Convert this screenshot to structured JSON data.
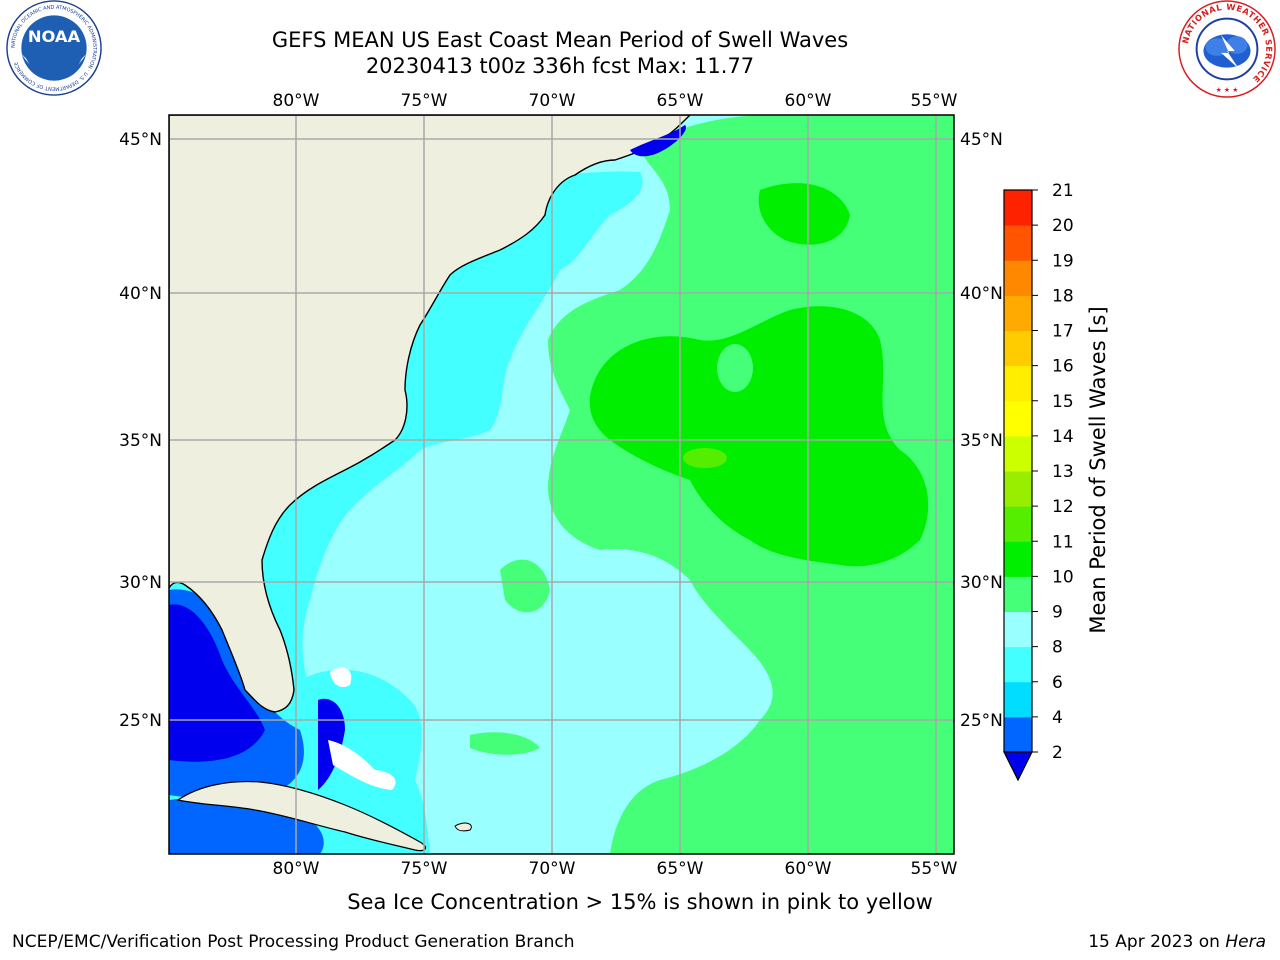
{
  "title_line1": "GEFS MEAN US East Coast Mean Period of Swell Waves",
  "title_line2": "20230413 t00z 336h fcst   Max: 11.77",
  "caption": "Sea Ice Concentration > 15% is shown in pink to yellow",
  "footer_left": "NCEP/EMC/Verification Post Processing Product Generation Branch",
  "footer_date": "15 Apr 2023 on ",
  "footer_machine": "Hera",
  "logos": {
    "noaa": {
      "icon": "noaa-logo",
      "text": "NOAA",
      "ring_text": "NATIONAL OCEANIC AND ATMOSPHERIC ADMINISTRATION · U.S. DEPARTMENT OF COMMERCE"
    },
    "nws": {
      "icon": "nws-logo",
      "ring_text": "NATIONAL WEATHER SERVICE"
    }
  },
  "map": {
    "lon_range": [
      -85,
      -54.3
    ],
    "lat_range": [
      20.3,
      46
    ],
    "lon_ticks": [
      "80°W",
      "75°W",
      "70°W",
      "65°W",
      "60°W",
      "55°W"
    ],
    "lon_tick_values": [
      -80,
      -75,
      -70,
      -65,
      -60,
      -55
    ],
    "lat_ticks": [
      "45°N",
      "40°N",
      "35°N",
      "30°N",
      "25°N"
    ],
    "lat_tick_values": [
      45,
      40,
      35,
      30,
      25
    ],
    "grid": true,
    "land_color": "#efefdf",
    "gridline_color": "#a8a8a8"
  },
  "colorbar": {
    "label": "Mean Period of Swell Waves [s]",
    "ticks": [
      "2",
      "4",
      "6",
      "8",
      "9",
      "10",
      "11",
      "12",
      "13",
      "14",
      "15",
      "16",
      "17",
      "18",
      "19",
      "20",
      "21"
    ],
    "colors": [
      "#0066ff",
      "#00ddff",
      "#44ffff",
      "#99ffff",
      "#44ff77",
      "#00ee00",
      "#55ee00",
      "#99ee00",
      "#ccff00",
      "#ffff00",
      "#ffee00",
      "#ffcc00",
      "#ffaa00",
      "#ff8800",
      "#ff5500",
      "#ff2200"
    ],
    "under_color": "#0000ee"
  }
}
